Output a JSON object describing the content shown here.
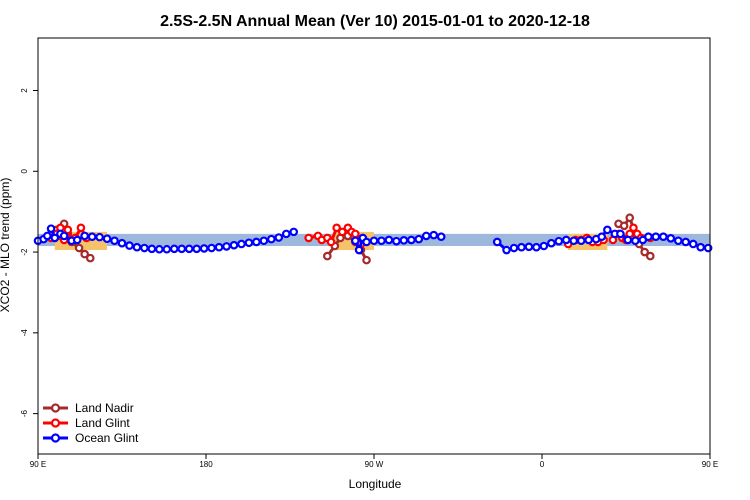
{
  "chart_data": {
    "type": "line",
    "title": "2.5S-2.5N Annual Mean (Ver 10)   2015-01-01 to 2020-12-18",
    "xlabel": "Longitude",
    "ylabel": "XCO2 - MLO trend (ppm)",
    "xlim": [
      90,
      450
    ],
    "ylim": [
      -7.0,
      3.3
    ],
    "xticks": [
      {
        "value": 90,
        "label": "90 E"
      },
      {
        "value": 180,
        "label": "180"
      },
      {
        "value": 270,
        "label": "90 W"
      },
      {
        "value": 360,
        "label": "0"
      },
      {
        "value": 450,
        "label": "90 E"
      },
      {
        "value": 540,
        "label": "180"
      }
    ],
    "yticks": [
      {
        "value": 2,
        "label": "2"
      },
      {
        "value": 0,
        "label": "0"
      },
      {
        "value": -2,
        "label": "-2"
      },
      {
        "value": -4,
        "label": "-4"
      },
      {
        "value": -6,
        "label": "-6"
      }
    ],
    "bands": [
      {
        "color": "#9db8dc",
        "x": [
          90,
          450
        ],
        "y": [
          -1.85,
          -1.55
        ]
      },
      {
        "color": "#f5c46a",
        "x": [
          99,
          127
        ],
        "y": [
          -1.95,
          -1.5
        ]
      },
      {
        "color": "#f5c46a",
        "x": [
          249,
          270
        ],
        "y": [
          -1.95,
          -1.5
        ]
      },
      {
        "color": "#f5c46a",
        "x": [
          374,
          395
        ],
        "y": [
          -1.95,
          -1.55
        ]
      }
    ],
    "series": [
      {
        "name": "Land Nadir",
        "color": "#a52a2a",
        "segments": [
          [
            [
              100,
              -1.45
            ],
            [
              102,
              -1.6
            ],
            [
              104,
              -1.3
            ],
            [
              106,
              -1.55
            ],
            [
              108,
              -1.75
            ],
            [
              112,
              -1.9
            ],
            [
              115,
              -2.05
            ],
            [
              118,
              -2.15
            ]
          ],
          [
            [
              245,
              -2.1
            ],
            [
              249,
              -1.85
            ],
            [
              252,
              -1.65
            ],
            [
              256,
              -1.6
            ],
            [
              260,
              -1.75
            ],
            [
              263,
              -1.95
            ],
            [
              266,
              -2.2
            ]
          ],
          [
            [
              401,
              -1.3
            ],
            [
              404,
              -1.35
            ],
            [
              407,
              -1.15
            ],
            [
              410,
              -1.55
            ],
            [
              412,
              -1.8
            ],
            [
              415,
              -2.0
            ],
            [
              418,
              -2.1
            ]
          ]
        ]
      },
      {
        "name": "Land Glint",
        "color": "#ff0000",
        "segments": [
          [
            [
              97,
              -1.65
            ],
            [
              100,
              -1.55
            ],
            [
              102,
              -1.4
            ],
            [
              104,
              -1.7
            ],
            [
              106,
              -1.45
            ],
            [
              108,
              -1.7
            ],
            [
              110,
              -1.65
            ],
            [
              113,
              -1.4
            ],
            [
              116,
              -1.65
            ]
          ],
          [
            [
              235,
              -1.65
            ],
            [
              240,
              -1.6
            ],
            [
              242,
              -1.7
            ],
            [
              245,
              -1.65
            ],
            [
              247,
              -1.75
            ],
            [
              250,
              -1.4
            ],
            [
              253,
              -1.5
            ],
            [
              256,
              -1.4
            ],
            [
              258,
              -1.5
            ],
            [
              260,
              -1.55
            ],
            [
              263,
              -1.8
            ]
          ],
          [
            [
              374,
              -1.8
            ],
            [
              378,
              -1.7
            ],
            [
              381,
              -1.7
            ],
            [
              384,
              -1.65
            ],
            [
              387,
              -1.75
            ],
            [
              390,
              -1.75
            ],
            [
              393,
              -1.7
            ]
          ],
          [
            [
              398,
              -1.7
            ],
            [
              401,
              -1.55
            ],
            [
              403,
              -1.65
            ],
            [
              405,
              -1.7
            ],
            [
              407,
              -1.55
            ],
            [
              409,
              -1.4
            ],
            [
              411,
              -1.55
            ],
            [
              413,
              -1.65
            ],
            [
              418,
              -1.65
            ]
          ]
        ]
      },
      {
        "name": "Ocean Glint",
        "color": "#0000ff",
        "segments": [
          [
            [
              90,
              -1.72
            ],
            [
              93,
              -1.68
            ],
            [
              95,
              -1.6
            ],
            [
              97,
              -1.42
            ],
            [
              99,
              -1.65
            ],
            [
              102,
              -1.55
            ],
            [
              104,
              -1.6
            ],
            [
              108,
              -1.72
            ],
            [
              111,
              -1.7
            ],
            [
              115,
              -1.6
            ],
            [
              119,
              -1.62
            ],
            [
              123,
              -1.63
            ],
            [
              127,
              -1.67
            ],
            [
              131,
              -1.72
            ],
            [
              135,
              -1.78
            ],
            [
              139,
              -1.84
            ],
            [
              143,
              -1.88
            ],
            [
              147,
              -1.9
            ],
            [
              151,
              -1.92
            ],
            [
              155,
              -1.93
            ],
            [
              159,
              -1.93
            ],
            [
              163,
              -1.92
            ],
            [
              167,
              -1.92
            ],
            [
              171,
              -1.92
            ],
            [
              175,
              -1.92
            ],
            [
              179,
              -1.91
            ],
            [
              183,
              -1.9
            ],
            [
              187,
              -1.88
            ],
            [
              191,
              -1.86
            ],
            [
              195,
              -1.83
            ],
            [
              199,
              -1.8
            ],
            [
              203,
              -1.77
            ],
            [
              207,
              -1.75
            ],
            [
              211,
              -1.72
            ],
            [
              215,
              -1.68
            ],
            [
              219,
              -1.64
            ],
            [
              223,
              -1.55
            ],
            [
              227,
              -1.5
            ]
          ],
          [
            [
              260,
              -1.72
            ],
            [
              262,
              -1.95
            ],
            [
              264,
              -1.65
            ]
          ],
          [
            [
              266,
              -1.75
            ],
            [
              270,
              -1.72
            ],
            [
              274,
              -1.72
            ],
            [
              278,
              -1.7
            ],
            [
              282,
              -1.73
            ],
            [
              286,
              -1.71
            ],
            [
              290,
              -1.7
            ],
            [
              294,
              -1.68
            ],
            [
              298,
              -1.6
            ],
            [
              302,
              -1.58
            ],
            [
              306,
              -1.62
            ]
          ],
          [
            [
              336,
              -1.75
            ],
            [
              341,
              -1.95
            ],
            [
              345,
              -1.9
            ],
            [
              349,
              -1.88
            ],
            [
              353,
              -1.87
            ],
            [
              357,
              -1.88
            ],
            [
              361,
              -1.85
            ],
            [
              365,
              -1.78
            ],
            [
              369,
              -1.73
            ],
            [
              373,
              -1.7
            ],
            [
              377,
              -1.72
            ],
            [
              381,
              -1.72
            ],
            [
              385,
              -1.7
            ],
            [
              389,
              -1.68
            ],
            [
              392,
              -1.62
            ],
            [
              395,
              -1.45
            ],
            [
              399,
              -1.55
            ],
            [
              402,
              -1.55
            ],
            [
              406,
              -1.7
            ],
            [
              410,
              -1.72
            ],
            [
              414,
              -1.7
            ],
            [
              417,
              -1.62
            ],
            [
              421,
              -1.62
            ],
            [
              425,
              -1.62
            ],
            [
              429,
              -1.66
            ],
            [
              433,
              -1.72
            ],
            [
              437,
              -1.75
            ],
            [
              441,
              -1.8
            ],
            [
              445,
              -1.88
            ],
            [
              449,
              -1.9
            ]
          ]
        ]
      }
    ],
    "legend": {
      "placement": "bottom-left"
    }
  }
}
